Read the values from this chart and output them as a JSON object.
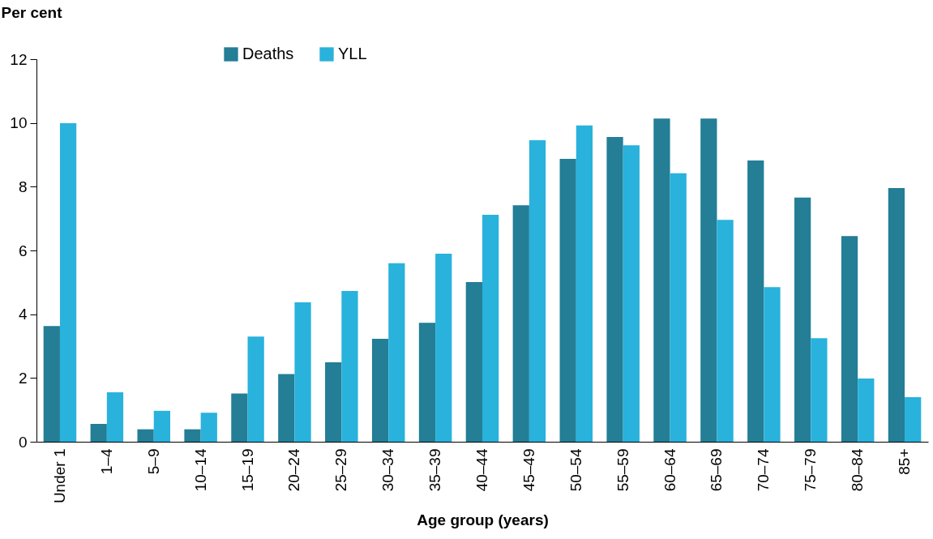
{
  "chart_data": {
    "type": "bar",
    "xlabel": "Age group (years)",
    "ylabel": "Per cent",
    "categories": [
      "Under 1",
      "1–4",
      "5–9",
      "10–14",
      "15–19",
      "20–24",
      "25–29",
      "30–34",
      "35–39",
      "40–44",
      "45–49",
      "50–54",
      "55–59",
      "60–64",
      "65–69",
      "70–74",
      "75–79",
      "80–84",
      "85+"
    ],
    "series": [
      {
        "name": "Deaths",
        "color": "#237e96",
        "values": [
          3.63,
          0.56,
          0.39,
          0.39,
          1.51,
          2.12,
          2.49,
          3.23,
          3.73,
          5.01,
          7.42,
          8.87,
          9.56,
          10.14,
          10.14,
          8.82,
          7.66,
          6.45,
          7.96
        ]
      },
      {
        "name": "YLL",
        "color": "#29b2dc",
        "values": [
          9.99,
          1.55,
          0.97,
          0.91,
          3.3,
          4.37,
          4.73,
          5.6,
          5.9,
          7.12,
          9.46,
          9.92,
          9.3,
          8.42,
          6.96,
          4.85,
          3.25,
          1.98,
          1.4
        ]
      }
    ],
    "ylim": [
      0,
      12
    ],
    "yticks": [
      0,
      2,
      4,
      6,
      8,
      10,
      12
    ],
    "legend": "top"
  }
}
